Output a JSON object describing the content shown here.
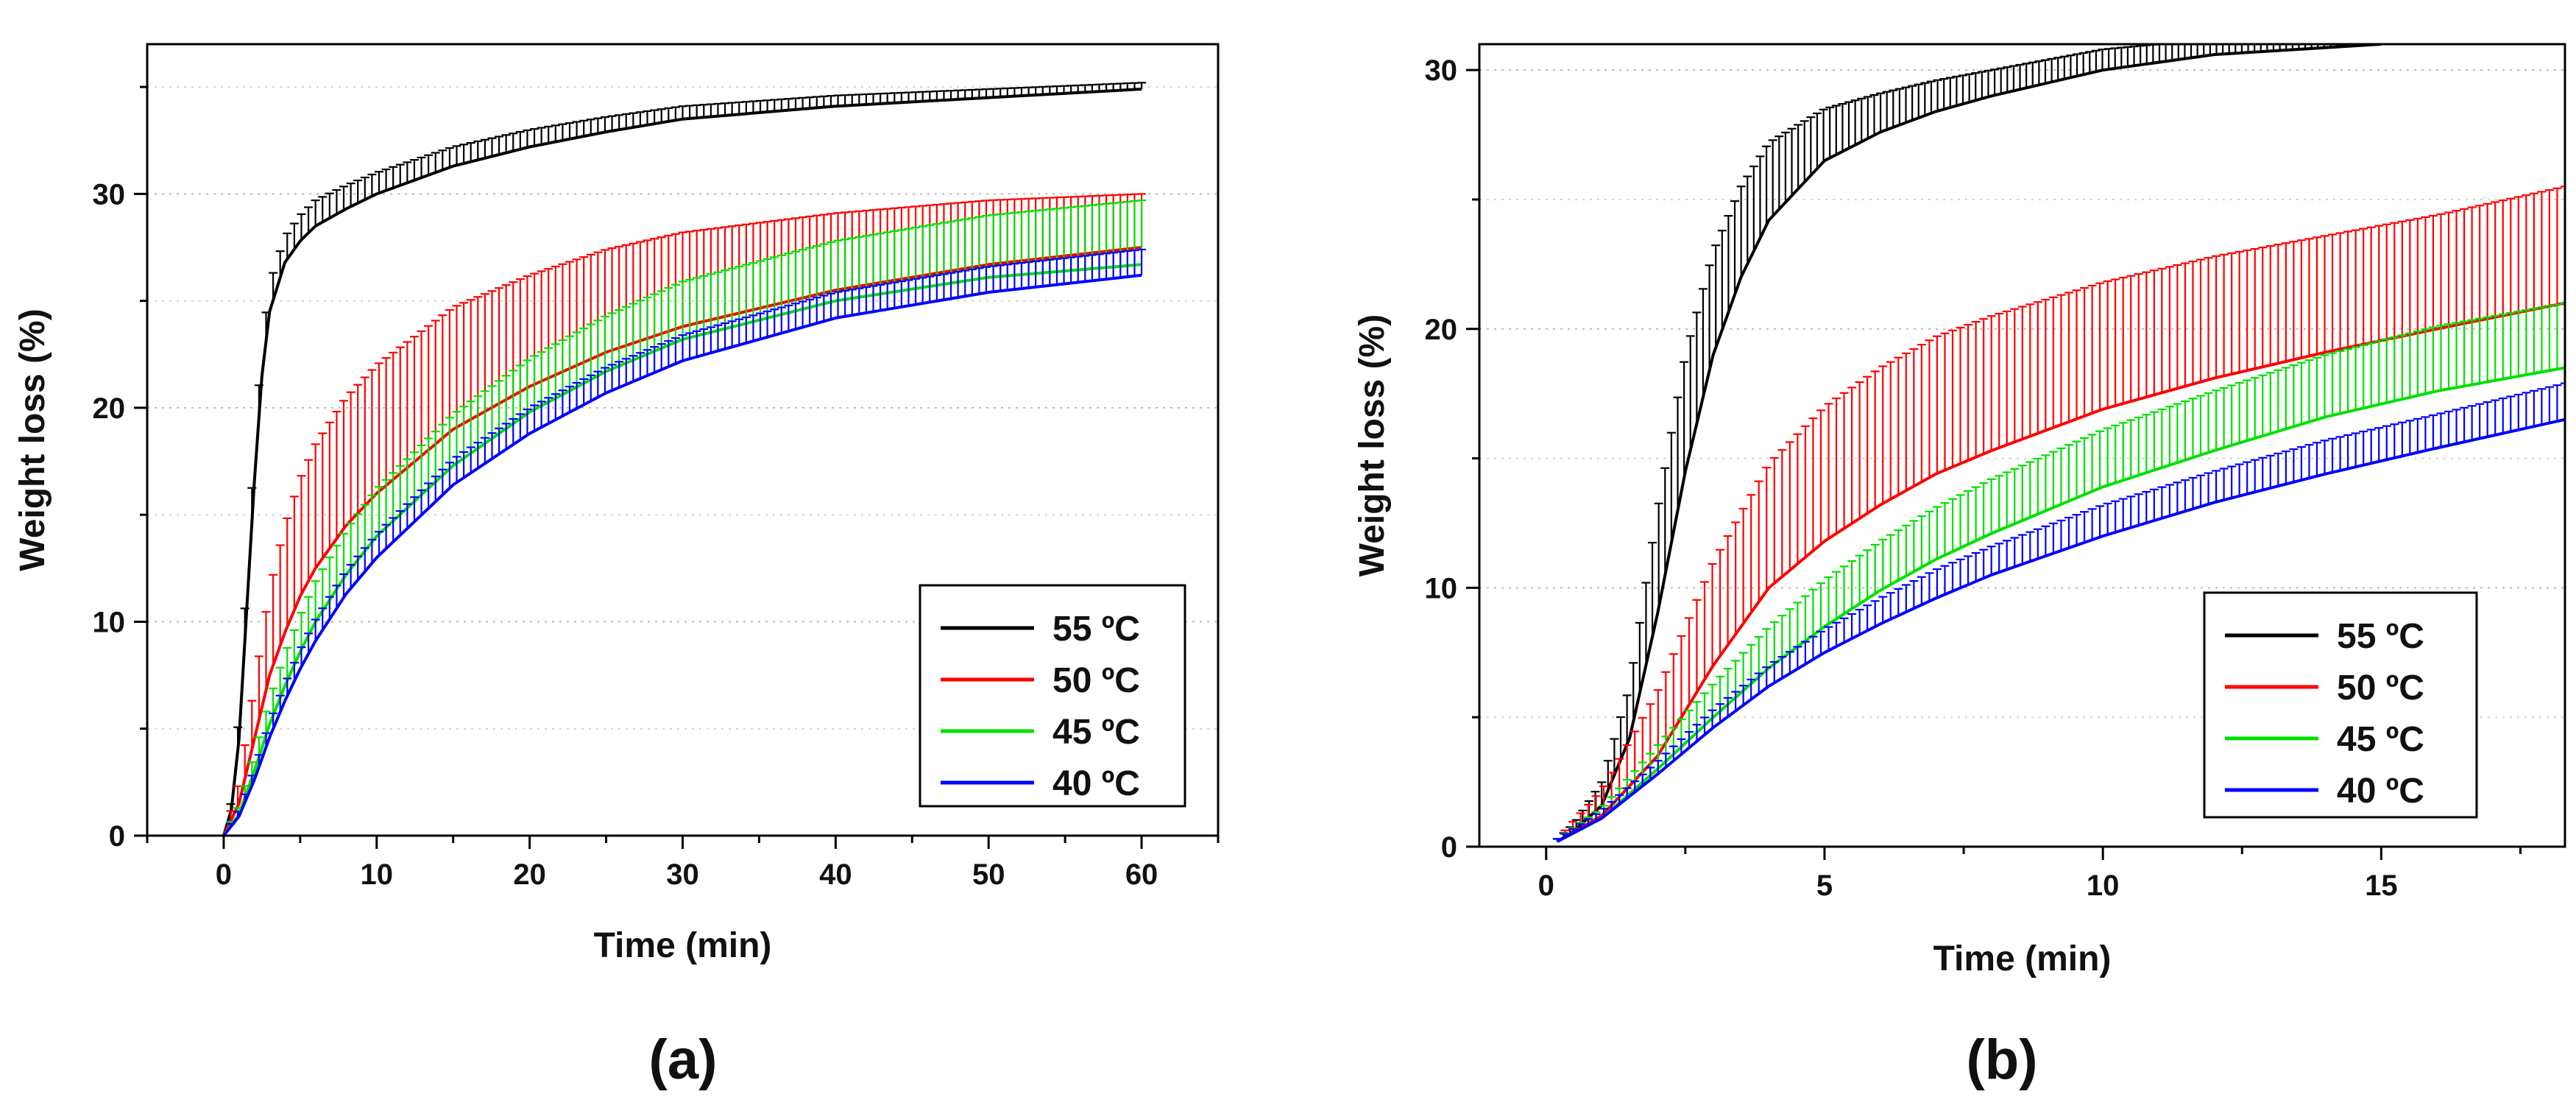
{
  "chart_data": [
    {
      "type": "line",
      "panel_label": "(a)",
      "xlabel": "Time (min)",
      "ylabel": "Weight loss (%)",
      "xlim": [
        -5,
        65
      ],
      "ylim": [
        0,
        37
      ],
      "xticks": [
        0,
        10,
        20,
        30,
        40,
        50,
        60
      ],
      "yticks": [
        0,
        10,
        20,
        30
      ],
      "grid": true,
      "legend_position": "bottom-right",
      "error_bars": true,
      "series": [
        {
          "name": "55 ºC",
          "color": "#000000",
          "x": [
            0,
            0.5,
            1,
            1.5,
            2,
            2.5,
            3,
            4,
            5,
            6,
            8,
            10,
            15,
            20,
            25,
            30,
            40,
            50,
            60
          ],
          "y": [
            0,
            1.2,
            4.5,
            10.5,
            16.5,
            21.5,
            24.5,
            26.8,
            27.8,
            28.5,
            29.3,
            30.0,
            31.3,
            32.2,
            32.9,
            33.5,
            34.1,
            34.5,
            34.9
          ],
          "err": [
            0,
            0.4,
            1.2,
            1.6,
            1.6,
            1.4,
            1.3,
            1.2,
            1.2,
            1.2,
            1.1,
            1.0,
            0.9,
            0.8,
            0.7,
            0.6,
            0.5,
            0.4,
            0.3
          ]
        },
        {
          "name": "50 ºC",
          "color": "#ff0000",
          "x": [
            0,
            1,
            2,
            3,
            4,
            5,
            6,
            8,
            10,
            15,
            20,
            25,
            30,
            40,
            50,
            60
          ],
          "y": [
            0,
            1.5,
            4.5,
            7.5,
            9.5,
            11.2,
            12.5,
            14.5,
            16.0,
            19.0,
            21.0,
            22.6,
            23.8,
            25.5,
            26.7,
            27.5
          ],
          "err": [
            0,
            1.0,
            2.5,
            4.0,
            5.0,
            5.5,
            5.8,
            6.0,
            6.0,
            5.7,
            5.2,
            4.8,
            4.4,
            3.6,
            3.0,
            2.5
          ]
        },
        {
          "name": "45 ºC",
          "color": "#00e000",
          "x": [
            0,
            1,
            2,
            3,
            4,
            5,
            6,
            8,
            10,
            15,
            20,
            25,
            30,
            40,
            50,
            60
          ],
          "y": [
            0,
            1.0,
            3.0,
            5.2,
            7.0,
            8.6,
            10.0,
            12.2,
            14.0,
            17.3,
            19.8,
            21.7,
            23.2,
            25.0,
            26.1,
            26.7
          ],
          "err": [
            0,
            0.4,
            0.8,
            1.2,
            1.5,
            1.7,
            1.9,
            2.1,
            2.2,
            2.4,
            2.5,
            2.6,
            2.7,
            2.8,
            2.9,
            3.0
          ]
        },
        {
          "name": "40 ºC",
          "color": "#0000ff",
          "x": [
            0,
            1,
            2,
            3,
            4,
            5,
            6,
            8,
            10,
            15,
            20,
            25,
            30,
            40,
            50,
            60
          ],
          "y": [
            0,
            0.9,
            2.6,
            4.6,
            6.3,
            7.8,
            9.1,
            11.3,
            13.0,
            16.4,
            18.8,
            20.7,
            22.2,
            24.2,
            25.4,
            26.2
          ],
          "err": [
            0,
            0.3,
            0.5,
            0.7,
            0.8,
            0.9,
            1.0,
            1.1,
            1.1,
            1.2,
            1.2,
            1.2,
            1.2,
            1.2,
            1.2,
            1.2
          ]
        }
      ]
    },
    {
      "type": "line",
      "panel_label": "(b)",
      "xlabel": "Time (min)",
      "ylabel": "Weight loss (%)",
      "xlim": [
        -1.2,
        18.3
      ],
      "ylim": [
        0,
        31
      ],
      "xticks": [
        0,
        5,
        10,
        15
      ],
      "yticks": [
        0,
        10,
        20,
        30
      ],
      "grid": true,
      "legend_position": "bottom-right",
      "error_bars": true,
      "series": [
        {
          "name": "55 ºC",
          "color": "#000000",
          "x": [
            0.2,
            0.5,
            1.0,
            1.5,
            2.0,
            2.5,
            3.0,
            3.5,
            4.0,
            5.0,
            6.0,
            7.0,
            8.0,
            10.0,
            12.0,
            15.0
          ],
          "y": [
            0.2,
            0.6,
            1.6,
            4.2,
            9.0,
            14.5,
            19.0,
            22.0,
            24.2,
            26.5,
            27.6,
            28.4,
            29.0,
            30.0,
            30.6,
            31.0
          ],
          "err": [
            0.1,
            0.3,
            0.9,
            2.0,
            4.0,
            4.5,
            4.0,
            3.5,
            3.0,
            2.0,
            1.5,
            1.2,
            1.0,
            0.8,
            0.6,
            0.5
          ]
        },
        {
          "name": "50 ºC",
          "color": "#ff0000",
          "x": [
            0.2,
            1,
            2,
            3,
            4,
            5,
            6,
            7,
            8,
            10,
            12,
            14,
            16,
            18.3
          ],
          "y": [
            0.2,
            1.2,
            3.5,
            7.0,
            10.0,
            11.8,
            13.2,
            14.4,
            15.3,
            16.9,
            18.1,
            19.1,
            20.0,
            21.0
          ],
          "err": [
            0.1,
            1.0,
            2.5,
            4.0,
            4.8,
            5.2,
            5.3,
            5.3,
            5.2,
            4.9,
            4.7,
            4.5,
            4.4,
            4.5
          ]
        },
        {
          "name": "45 ºC",
          "color": "#00e000",
          "x": [
            0.2,
            1,
            2,
            3,
            4,
            5,
            6,
            7,
            8,
            10,
            12,
            14,
            16,
            18.3
          ],
          "y": [
            0.2,
            1.1,
            3.0,
            5.0,
            6.9,
            8.5,
            9.9,
            11.1,
            12.1,
            13.9,
            15.3,
            16.6,
            17.6,
            18.5
          ],
          "err": [
            0.1,
            0.4,
            0.9,
            1.3,
            1.6,
            1.8,
            1.9,
            2.0,
            2.1,
            2.2,
            2.3,
            2.4,
            2.5,
            2.5
          ]
        },
        {
          "name": "40 ºC",
          "color": "#0000ff",
          "x": [
            0.2,
            1,
            2,
            3,
            4,
            5,
            6,
            7,
            8,
            10,
            12,
            14,
            16,
            18.3
          ],
          "y": [
            0.2,
            1.1,
            2.8,
            4.6,
            6.2,
            7.5,
            8.6,
            9.6,
            10.5,
            12.0,
            13.3,
            14.4,
            15.4,
            16.5
          ],
          "err": [
            0.1,
            0.3,
            0.5,
            0.7,
            0.8,
            0.9,
            1.0,
            1.1,
            1.1,
            1.2,
            1.2,
            1.3,
            1.3,
            1.4
          ]
        }
      ]
    }
  ]
}
